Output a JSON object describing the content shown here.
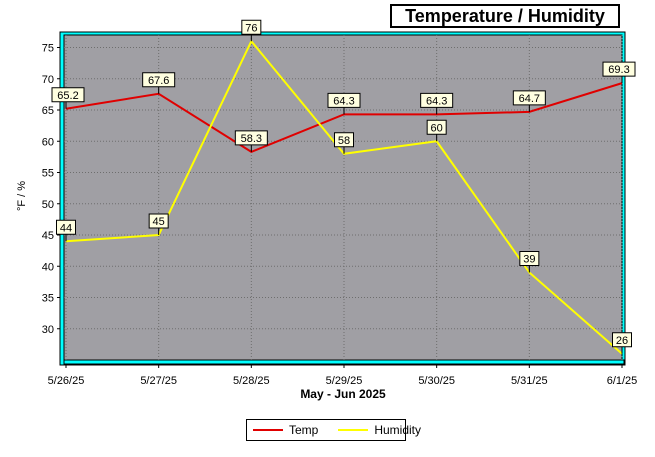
{
  "chart_data": {
    "type": "line",
    "title": "Temperature / Humidity",
    "xlabel": "May - Jun 2025",
    "ylabel": "°F / %",
    "categories": [
      "5/26/25",
      "5/27/25",
      "5/28/25",
      "5/29/25",
      "5/30/25",
      "5/31/25",
      "6/1/25"
    ],
    "ylim": [
      25,
      77
    ],
    "yticks": [
      30,
      35,
      40,
      45,
      50,
      55,
      60,
      65,
      70,
      75
    ],
    "grid": true,
    "legend_position": "bottom",
    "series": [
      {
        "name": "Temp",
        "color": "#e00000",
        "values": [
          65.2,
          67.6,
          58.3,
          64.3,
          64.3,
          64.7,
          69.3
        ]
      },
      {
        "name": "Humidity",
        "color": "#ffff00",
        "values": [
          44,
          45,
          76,
          58,
          60,
          39,
          26
        ]
      }
    ]
  },
  "colors": {
    "plot_background": "#a09fa4",
    "frame": "#00ffff",
    "grid": "#6e6e6e",
    "label_box": "#ffffe0"
  }
}
